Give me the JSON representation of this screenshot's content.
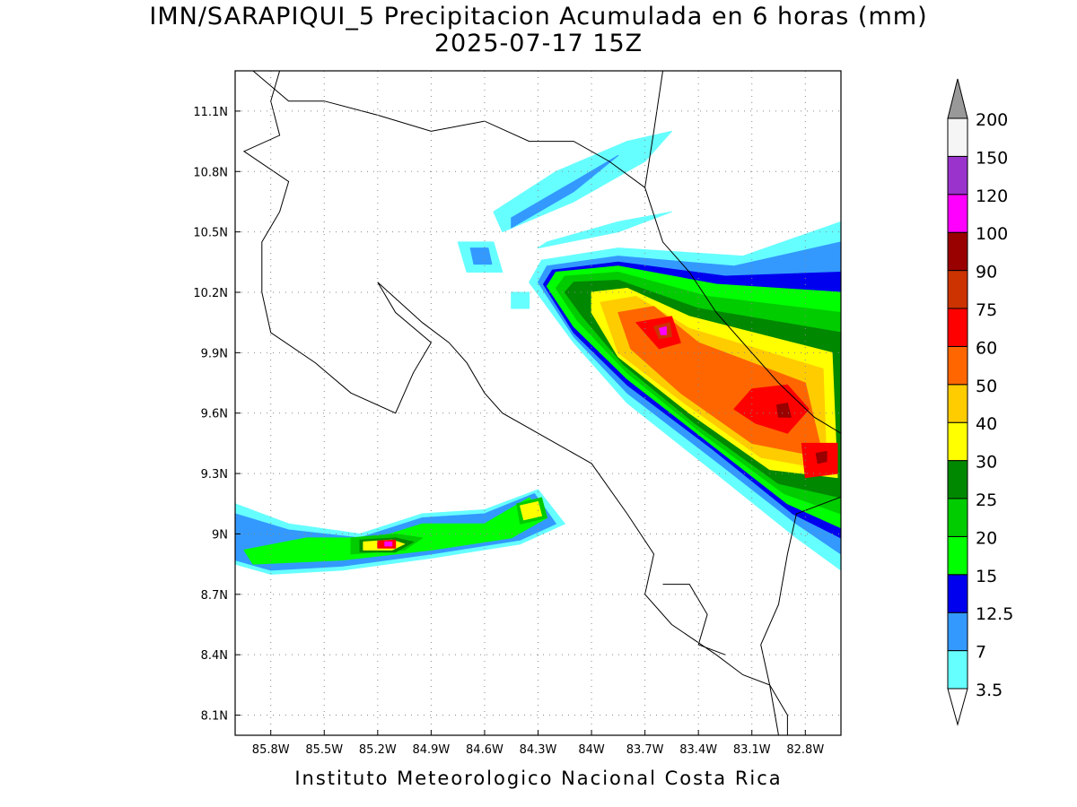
{
  "title_line1": "IMN/SARAPIQUI_5 Precipitacion Acumulada en 6 horas (mm)",
  "title_line2": "2025-07-17 15Z",
  "credit": "Instituto Meteorologico Nacional Costa Rica",
  "map": {
    "lon_range": [
      -86.0,
      -82.6
    ],
    "lat_range": [
      8.0,
      11.3
    ],
    "lon_ticks": [
      {
        "value": -85.8,
        "label": "85.8W"
      },
      {
        "value": -85.5,
        "label": "85.5W"
      },
      {
        "value": -85.2,
        "label": "85.2W"
      },
      {
        "value": -84.9,
        "label": "84.9W"
      },
      {
        "value": -84.6,
        "label": "84.6W"
      },
      {
        "value": -84.3,
        "label": "84.3W"
      },
      {
        "value": -84.0,
        "label": "84W"
      },
      {
        "value": -83.7,
        "label": "83.7W"
      },
      {
        "value": -83.4,
        "label": "83.4W"
      },
      {
        "value": -83.1,
        "label": "83.1W"
      },
      {
        "value": -82.8,
        "label": "82.8W"
      }
    ],
    "lat_ticks": [
      {
        "value": 11.1,
        "label": "11.1N"
      },
      {
        "value": 10.8,
        "label": "10.8N"
      },
      {
        "value": 10.5,
        "label": "10.5N"
      },
      {
        "value": 10.2,
        "label": "10.2N"
      },
      {
        "value": 9.9,
        "label": "9.9N"
      },
      {
        "value": 9.6,
        "label": "9.6N"
      },
      {
        "value": 9.3,
        "label": "9.3N"
      },
      {
        "value": 9.0,
        "label": "9N"
      },
      {
        "value": 8.7,
        "label": "8.7N"
      },
      {
        "value": 8.4,
        "label": "8.4N"
      },
      {
        "value": 8.1,
        "label": "8.1N"
      }
    ],
    "grid": true
  },
  "legend": {
    "bins": [
      {
        "label": "3.5",
        "color": "#66ffff"
      },
      {
        "label": "7",
        "color": "#3399ff"
      },
      {
        "label": "12.5",
        "color": "#0000ee"
      },
      {
        "label": "15",
        "color": "#00ff00"
      },
      {
        "label": "20",
        "color": "#00cc00"
      },
      {
        "label": "25",
        "color": "#008800"
      },
      {
        "label": "30",
        "color": "#ffff00"
      },
      {
        "label": "40",
        "color": "#ffcc00"
      },
      {
        "label": "50",
        "color": "#ff6600"
      },
      {
        "label": "60",
        "color": "#ff0000"
      },
      {
        "label": "75",
        "color": "#cc3300"
      },
      {
        "label": "90",
        "color": "#990000"
      },
      {
        "label": "100",
        "color": "#ff00ff"
      },
      {
        "label": "120",
        "color": "#9933cc"
      },
      {
        "label": "150",
        "color": "#f5f5f5"
      },
      {
        "label": "200",
        "color": "#999999"
      }
    ]
  },
  "rain_areas": [
    {
      "level": 0,
      "points": [
        [
          -84.28,
          10.36
        ],
        [
          -83.85,
          10.42
        ],
        [
          -83.15,
          10.38
        ],
        [
          -82.6,
          10.55
        ],
        [
          -82.6,
          8.82
        ],
        [
          -82.85,
          8.98
        ],
        [
          -83.3,
          9.3
        ],
        [
          -83.8,
          9.65
        ],
        [
          -84.1,
          9.95
        ],
        [
          -84.35,
          10.25
        ]
      ]
    },
    {
      "level": 1,
      "points": [
        [
          -84.25,
          10.33
        ],
        [
          -83.85,
          10.38
        ],
        [
          -83.2,
          10.33
        ],
        [
          -82.6,
          10.45
        ],
        [
          -82.6,
          8.9
        ],
        [
          -82.85,
          9.05
        ],
        [
          -83.3,
          9.36
        ],
        [
          -83.8,
          9.7
        ],
        [
          -84.1,
          9.98
        ],
        [
          -84.3,
          10.25
        ]
      ]
    },
    {
      "level": 2,
      "points": [
        [
          -84.22,
          10.31
        ],
        [
          -83.85,
          10.35
        ],
        [
          -83.25,
          10.28
        ],
        [
          -82.6,
          10.3
        ],
        [
          -82.6,
          8.98
        ],
        [
          -82.87,
          9.1
        ],
        [
          -83.32,
          9.42
        ],
        [
          -83.8,
          9.74
        ],
        [
          -84.1,
          10.0
        ],
        [
          -84.27,
          10.24
        ]
      ]
    },
    {
      "level": 3,
      "points": [
        [
          -84.2,
          10.3
        ],
        [
          -83.85,
          10.33
        ],
        [
          -83.3,
          10.24
        ],
        [
          -82.6,
          10.2
        ],
        [
          -82.6,
          9.03
        ],
        [
          -82.9,
          9.15
        ],
        [
          -83.35,
          9.46
        ],
        [
          -83.8,
          9.77
        ],
        [
          -84.1,
          10.03
        ],
        [
          -84.25,
          10.23
        ]
      ]
    },
    {
      "level": 4,
      "points": [
        [
          -84.15,
          10.28
        ],
        [
          -83.85,
          10.3
        ],
        [
          -83.35,
          10.18
        ],
        [
          -82.6,
          10.1
        ],
        [
          -82.6,
          9.1
        ],
        [
          -82.92,
          9.2
        ],
        [
          -83.38,
          9.5
        ],
        [
          -83.8,
          9.8
        ],
        [
          -84.08,
          10.06
        ],
        [
          -84.2,
          10.22
        ]
      ]
    },
    {
      "level": 5,
      "points": [
        [
          -84.1,
          10.25
        ],
        [
          -83.85,
          10.26
        ],
        [
          -83.4,
          10.12
        ],
        [
          -82.6,
          10.0
        ],
        [
          -82.6,
          9.18
        ],
        [
          -82.95,
          9.25
        ],
        [
          -83.42,
          9.55
        ],
        [
          -83.82,
          9.84
        ],
        [
          -84.05,
          10.08
        ],
        [
          -84.15,
          10.2
        ]
      ]
    },
    {
      "level": 6,
      "points": [
        [
          -84.0,
          10.2
        ],
        [
          -83.8,
          10.22
        ],
        [
          -83.45,
          10.08
        ],
        [
          -82.65,
          9.9
        ],
        [
          -82.62,
          9.28
        ],
        [
          -83.0,
          9.32
        ],
        [
          -83.45,
          9.6
        ],
        [
          -83.85,
          9.88
        ],
        [
          -84.0,
          10.1
        ]
      ]
    },
    {
      "level": 7,
      "points": [
        [
          -83.95,
          10.15
        ],
        [
          -83.75,
          10.18
        ],
        [
          -83.45,
          10.02
        ],
        [
          -82.7,
          9.82
        ],
        [
          -82.68,
          9.32
        ],
        [
          -83.05,
          9.38
        ],
        [
          -83.48,
          9.65
        ],
        [
          -83.85,
          9.9
        ]
      ]
    },
    {
      "level": 8,
      "points": [
        [
          -83.85,
          10.1
        ],
        [
          -83.65,
          10.13
        ],
        [
          -83.4,
          9.95
        ],
        [
          -82.8,
          9.75
        ],
        [
          -82.7,
          9.38
        ],
        [
          -83.1,
          9.45
        ],
        [
          -83.5,
          9.7
        ],
        [
          -83.78,
          9.92
        ]
      ]
    },
    {
      "level": 9,
      "points": [
        [
          -83.75,
          10.05
        ],
        [
          -83.55,
          10.08
        ],
        [
          -83.5,
          9.95
        ],
        [
          -83.62,
          9.92
        ]
      ]
    },
    {
      "level": 9,
      "points": [
        [
          -83.1,
          9.72
        ],
        [
          -82.9,
          9.74
        ],
        [
          -82.78,
          9.62
        ],
        [
          -82.9,
          9.5
        ],
        [
          -83.08,
          9.55
        ],
        [
          -83.2,
          9.62
        ]
      ]
    },
    {
      "level": 9,
      "points": [
        [
          -82.82,
          9.45
        ],
        [
          -82.62,
          9.45
        ],
        [
          -82.62,
          9.3
        ],
        [
          -82.8,
          9.28
        ]
      ]
    },
    {
      "level": 10,
      "points": [
        [
          -83.65,
          10.03
        ],
        [
          -83.56,
          10.05
        ],
        [
          -83.55,
          9.98
        ],
        [
          -83.62,
          9.97
        ]
      ]
    },
    {
      "level": 11,
      "points": [
        [
          -82.96,
          9.64
        ],
        [
          -82.9,
          9.65
        ],
        [
          -82.88,
          9.58
        ],
        [
          -82.95,
          9.58
        ]
      ]
    },
    {
      "level": 11,
      "points": [
        [
          -82.74,
          9.4
        ],
        [
          -82.68,
          9.41
        ],
        [
          -82.68,
          9.36
        ],
        [
          -82.73,
          9.35
        ]
      ]
    },
    {
      "level": 12,
      "points": [
        [
          -83.62,
          10.02
        ],
        [
          -83.58,
          10.03
        ],
        [
          -83.58,
          9.99
        ],
        [
          -83.61,
          9.99
        ]
      ]
    },
    {
      "level": 0,
      "points": [
        [
          -86.0,
          9.15
        ],
        [
          -85.7,
          9.05
        ],
        [
          -85.3,
          9.0
        ],
        [
          -84.95,
          9.1
        ],
        [
          -84.6,
          9.12
        ],
        [
          -84.3,
          9.22
        ],
        [
          -84.15,
          9.05
        ],
        [
          -84.4,
          8.95
        ],
        [
          -84.9,
          8.88
        ],
        [
          -85.4,
          8.82
        ],
        [
          -85.8,
          8.8
        ],
        [
          -86.0,
          8.85
        ]
      ]
    },
    {
      "level": 1,
      "points": [
        [
          -86.0,
          9.1
        ],
        [
          -85.7,
          9.02
        ],
        [
          -85.3,
          8.98
        ],
        [
          -84.95,
          9.08
        ],
        [
          -84.6,
          9.1
        ],
        [
          -84.32,
          9.2
        ],
        [
          -84.2,
          9.05
        ],
        [
          -84.4,
          8.97
        ],
        [
          -84.9,
          8.9
        ],
        [
          -85.4,
          8.84
        ],
        [
          -85.8,
          8.82
        ],
        [
          -86.0,
          8.87
        ]
      ]
    },
    {
      "level": 3,
      "points": [
        [
          -85.95,
          8.92
        ],
        [
          -85.6,
          8.98
        ],
        [
          -85.2,
          8.98
        ],
        [
          -84.95,
          9.05
        ],
        [
          -84.6,
          9.05
        ],
        [
          -84.35,
          9.18
        ],
        [
          -84.25,
          9.08
        ],
        [
          -84.45,
          8.98
        ],
        [
          -84.9,
          8.92
        ],
        [
          -85.4,
          8.87
        ],
        [
          -85.9,
          8.85
        ]
      ]
    },
    {
      "level": 4,
      "points": [
        [
          -85.35,
          8.98
        ],
        [
          -85.1,
          9.0
        ],
        [
          -84.95,
          8.98
        ],
        [
          -85.05,
          8.92
        ],
        [
          -85.35,
          8.9
        ]
      ]
    },
    {
      "level": 4,
      "points": [
        [
          -84.42,
          9.15
        ],
        [
          -84.28,
          9.18
        ],
        [
          -84.25,
          9.08
        ],
        [
          -84.4,
          9.05
        ]
      ]
    },
    {
      "level": 5,
      "points": [
        [
          -85.3,
          8.97
        ],
        [
          -85.1,
          8.98
        ],
        [
          -85.0,
          8.96
        ],
        [
          -85.1,
          8.91
        ],
        [
          -85.3,
          8.91
        ]
      ]
    },
    {
      "level": 6,
      "points": [
        [
          -85.28,
          8.96
        ],
        [
          -85.12,
          8.97
        ],
        [
          -85.05,
          8.95
        ],
        [
          -85.12,
          8.92
        ],
        [
          -85.28,
          8.92
        ]
      ]
    },
    {
      "level": 6,
      "points": [
        [
          -84.4,
          9.14
        ],
        [
          -84.3,
          9.16
        ],
        [
          -84.28,
          9.09
        ],
        [
          -84.38,
          9.07
        ]
      ]
    },
    {
      "level": 9,
      "points": [
        [
          -85.2,
          8.965
        ],
        [
          -85.1,
          8.97
        ],
        [
          -85.1,
          8.93
        ],
        [
          -85.2,
          8.93
        ]
      ]
    },
    {
      "level": 12,
      "points": [
        [
          -85.16,
          8.96
        ],
        [
          -85.12,
          8.96
        ],
        [
          -85.12,
          8.94
        ],
        [
          -85.16,
          8.94
        ]
      ]
    },
    {
      "level": 0,
      "points": [
        [
          -84.55,
          10.6
        ],
        [
          -84.2,
          10.8
        ],
        [
          -83.8,
          10.95
        ],
        [
          -83.55,
          11.0
        ],
        [
          -83.7,
          10.85
        ],
        [
          -84.1,
          10.65
        ],
        [
          -84.5,
          10.5
        ]
      ]
    },
    {
      "level": 1,
      "points": [
        [
          -84.45,
          10.57
        ],
        [
          -84.1,
          10.75
        ],
        [
          -83.85,
          10.88
        ],
        [
          -84.1,
          10.7
        ],
        [
          -84.45,
          10.52
        ]
      ]
    },
    {
      "level": 0,
      "points": [
        [
          -84.3,
          10.42
        ],
        [
          -83.85,
          10.5
        ],
        [
          -83.55,
          10.6
        ],
        [
          -83.85,
          10.55
        ],
        [
          -84.25,
          10.45
        ]
      ]
    },
    {
      "level": 0,
      "points": [
        [
          -84.75,
          10.45
        ],
        [
          -84.55,
          10.45
        ],
        [
          -84.5,
          10.3
        ],
        [
          -84.7,
          10.3
        ]
      ]
    },
    {
      "level": 1,
      "points": [
        [
          -84.68,
          10.42
        ],
        [
          -84.58,
          10.42
        ],
        [
          -84.56,
          10.34
        ],
        [
          -84.66,
          10.34
        ]
      ]
    },
    {
      "level": 0,
      "points": [
        [
          -84.45,
          10.2
        ],
        [
          -84.35,
          10.2
        ],
        [
          -84.35,
          10.12
        ],
        [
          -84.45,
          10.12
        ]
      ]
    }
  ],
  "coastlines": [
    {
      "points": [
        [
          -85.9,
          11.3
        ],
        [
          -85.7,
          11.15
        ],
        [
          -85.5,
          11.15
        ],
        [
          -85.2,
          11.08
        ],
        [
          -84.9,
          11.0
        ],
        [
          -84.6,
          11.05
        ],
        [
          -84.35,
          10.95
        ],
        [
          -84.1,
          10.95
        ],
        [
          -83.9,
          10.85
        ],
        [
          -83.7,
          10.72
        ]
      ]
    },
    {
      "points": [
        [
          -83.7,
          10.72
        ],
        [
          -83.6,
          10.45
        ],
        [
          -83.45,
          10.3
        ],
        [
          -83.3,
          10.1
        ],
        [
          -83.1,
          9.9
        ],
        [
          -82.95,
          9.75
        ],
        [
          -82.75,
          9.58
        ],
        [
          -82.6,
          9.5
        ]
      ]
    },
    {
      "points": [
        [
          -83.6,
          11.3
        ],
        [
          -83.65,
          11.0
        ],
        [
          -83.7,
          10.72
        ]
      ]
    },
    {
      "points": [
        [
          -85.75,
          11.3
        ],
        [
          -85.8,
          11.15
        ],
        [
          -85.75,
          10.98
        ],
        [
          -85.95,
          10.9
        ],
        [
          -85.7,
          10.75
        ],
        [
          -85.75,
          10.6
        ],
        [
          -85.85,
          10.45
        ],
        [
          -85.85,
          10.2
        ],
        [
          -85.8,
          10.0
        ],
        [
          -85.55,
          9.85
        ],
        [
          -85.35,
          9.7
        ],
        [
          -85.1,
          9.6
        ],
        [
          -85.0,
          9.8
        ],
        [
          -84.9,
          9.95
        ],
        [
          -85.1,
          10.1
        ],
        [
          -85.2,
          10.25
        ]
      ]
    },
    {
      "points": [
        [
          -85.2,
          10.25
        ],
        [
          -84.95,
          10.05
        ],
        [
          -84.8,
          9.95
        ],
        [
          -84.7,
          9.85
        ],
        [
          -84.6,
          9.7
        ],
        [
          -84.5,
          9.6
        ],
        [
          -84.2,
          9.45
        ],
        [
          -84.0,
          9.35
        ],
        [
          -83.8,
          9.1
        ],
        [
          -83.65,
          8.9
        ],
        [
          -83.7,
          8.7
        ],
        [
          -83.55,
          8.55
        ],
        [
          -83.3,
          8.4
        ],
        [
          -83.15,
          8.3
        ],
        [
          -83.0,
          8.25
        ],
        [
          -82.9,
          8.1
        ],
        [
          -82.9,
          8.0
        ]
      ]
    },
    {
      "points": [
        [
          -83.6,
          8.75
        ],
        [
          -83.45,
          8.75
        ],
        [
          -83.35,
          8.6
        ],
        [
          -83.4,
          8.45
        ],
        [
          -83.25,
          8.4
        ]
      ]
    },
    {
      "points": [
        [
          -82.95,
          8.0
        ],
        [
          -83.0,
          8.25
        ],
        [
          -83.05,
          8.45
        ],
        [
          -82.95,
          8.65
        ],
        [
          -82.9,
          8.9
        ],
        [
          -82.85,
          9.1
        ],
        [
          -82.55,
          9.2
        ]
      ]
    }
  ]
}
